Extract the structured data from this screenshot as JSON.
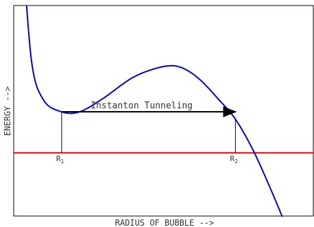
{
  "chart_data": {
    "type": "line",
    "title": "",
    "xlabel": "RADIUS OF BUBBLE -->",
    "ylabel": "ENERGY -->",
    "xlim": [
      0,
      10
    ],
    "ylim": [
      -3,
      7
    ],
    "grid": false,
    "legend": "none",
    "annotation": "Instanton Tunneling",
    "series": [
      {
        "color": "#0000cc",
        "x": [
          0.3,
          0.6,
          1.0,
          1.6,
          2.2,
          3.0,
          4.0,
          5.0,
          5.6,
          6.2,
          6.8,
          7.4,
          8.0,
          8.6,
          9.1
        ],
        "values": [
          9.6,
          4.3,
          2.5,
          1.95,
          1.95,
          2.6,
          3.6,
          4.1,
          4.05,
          3.5,
          2.6,
          1.6,
          0.1,
          -1.8,
          -3.5
        ]
      }
    ],
    "baseline": {
      "y": 0.0,
      "color": "#ff0000"
    },
    "markers": [
      {
        "label": "R",
        "sub": "1",
        "x": 1.6,
        "y": 1.95
      },
      {
        "label": "R",
        "sub": "2",
        "x": 7.4,
        "y": 1.6
      }
    ]
  }
}
